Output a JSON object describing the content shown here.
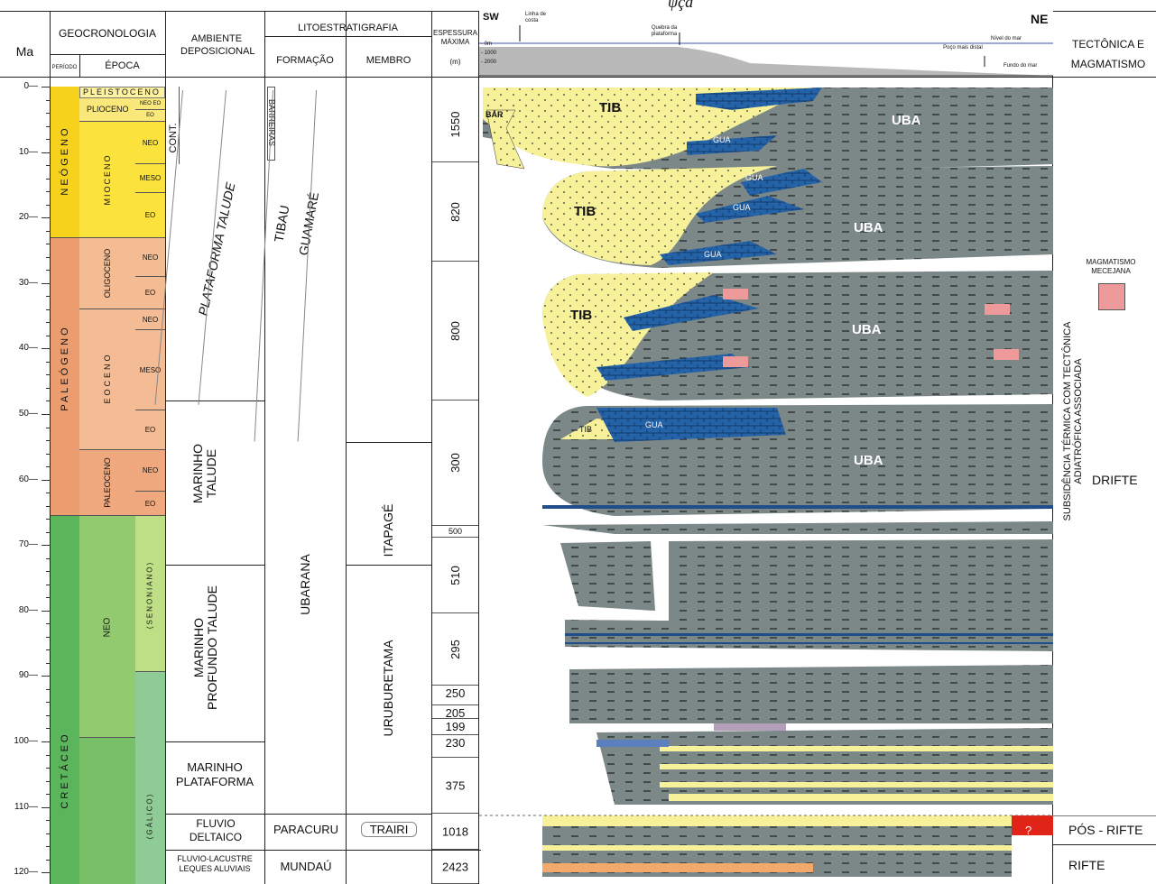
{
  "top_caption": "ψçã",
  "header": {
    "ma": "Ma",
    "geocronologia": "GEOCRONOLOGIA",
    "periodo": "PERÍODO",
    "epoca": "ÉPOCA",
    "ambiente": "AMBIENTE DEPOSICIONAL",
    "litoestratigrafia": "LITOESTRATIGRAFIA",
    "formacao": "FORMAÇÃO",
    "membro": "MEMBRO",
    "espessura": "ESPESSURA MÁXIMA",
    "espessura_unit": "(m)",
    "tectonica": "TECTÔNICA E MAGMATISMO"
  },
  "section_header": {
    "sw": "SW",
    "ne": "NE",
    "linha_costa": "Linha de costa",
    "quebra": "Quebra da plataforma",
    "nivel_mar": "Nível do mar",
    "poco": "Poço mais distal",
    "fundo_mar": "Fundo do mar",
    "depths": [
      "- 0m",
      "- 1000",
      "- 2000"
    ]
  },
  "ma_ticks": [
    "0",
    "10",
    "20",
    "30",
    "40",
    "50",
    "60",
    "70",
    "80",
    "90",
    "100",
    "110",
    "120"
  ],
  "periods": [
    {
      "label": "NEÓGENO",
      "color": "#f6d21c"
    },
    {
      "label": "PALEÓGENO",
      "color": "#eb9d70"
    },
    {
      "label": "CRETÁCEO",
      "color": "#5bb55b"
    }
  ],
  "epochs": {
    "pleistoceno": "PLEISTOCENO",
    "plioceno": "PLIOCENO",
    "mioceno": "MIOCENO",
    "oligoceno": "OLIGOCENO",
    "eoceno": "EOCENO",
    "paleoceno": "PALEOCENO",
    "neo": "NEO",
    "senoniano": "(SENONIANO)",
    "galico": "(GÁLICO)"
  },
  "sub_epochs": [
    "NEO",
    "EO",
    "NEO",
    "MESO",
    "EO",
    "NEO",
    "EO",
    "NEO",
    "MESO",
    "EO",
    "NEO",
    "EO"
  ],
  "plio_sub": "NEO EO",
  "ambiente": {
    "cont": "CONT.",
    "plataforma_talude": "PLATAFORMA TALUDE",
    "marinho_talude": "MARINHO TALUDE",
    "marinho_profundo": "MARINHO PROFUNDO TALUDE",
    "marinho_plataforma": "MARINHO PLATAFORMA",
    "fluvio_deltaico": "FLUVIO DELTAICO",
    "fluvio_lacustre": "FLUVIO-LACUSTRE LEQUES ALUVIAIS"
  },
  "formacao": {
    "barreiras": "BARREIRAS",
    "tibau": "TIBAU",
    "guamare": "GUAMARÉ",
    "ubarana": "UBARANA",
    "paracuru": "PARACURU",
    "mundau": "MUNDAÚ"
  },
  "membro": {
    "itapage": "ITAPAGÉ",
    "uruburetama": "URUBURETAMA",
    "trairi": "TRAIRI"
  },
  "espessuras": [
    "1550",
    "820",
    "800",
    "300",
    "500",
    "510",
    "295",
    "250",
    "205",
    "199",
    "230",
    "375",
    "1018",
    "2423"
  ],
  "section_labels": {
    "tib": "TIB",
    "uba": "UBA",
    "gua": "GUA",
    "bar": "BAR"
  },
  "tectonica": {
    "magmatismo": "MAGMATISMO MECEJANA",
    "subsidencia": "SUBSIDÊNCIA TÉRMICA COM TECTÔNICA ADIATRÓFICA ASSOCIADA",
    "drifte": "DRIFTE",
    "pos_rifte": "PÓS - RIFTE",
    "rifte": "RIFTE"
  },
  "colors": {
    "sand": "#f7f19a",
    "shale": "#7c8787",
    "carbonate": "#2463a8",
    "volcanic": "#ee9a9a",
    "red": "#e02417"
  }
}
